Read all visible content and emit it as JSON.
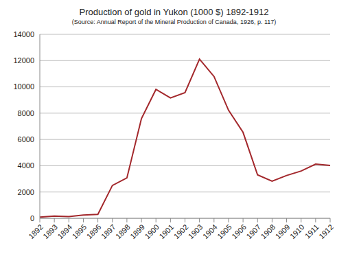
{
  "chart_data": {
    "type": "line",
    "title": "Production of gold in Yukon  (1000 $) 1892-1912",
    "subtitle": "(Source: Annual Report of the Mineral Production  of Canada, 1926, p. 117)",
    "categories": [
      "1892",
      "1893",
      "1894",
      "1895",
      "1896",
      "1897",
      "1898",
      "1899",
      "1900",
      "1901",
      "1902",
      "1903",
      "1904",
      "1905",
      "1906",
      "1907",
      "1908",
      "1909",
      "1910",
      "1911",
      "1912"
    ],
    "values": [
      88,
      176,
      125,
      250,
      300,
      2500,
      3073,
      7582,
      9809,
      9162,
      9565,
      12113,
      10790,
      8222,
      6540,
      3304,
      2820,
      3260,
      3600,
      4126,
      4025
    ],
    "color": "#a3282c",
    "ylim": [
      0,
      14000
    ],
    "yticks": [
      0,
      2000,
      4000,
      6000,
      8000,
      10000,
      12000,
      14000
    ],
    "grid": true
  }
}
